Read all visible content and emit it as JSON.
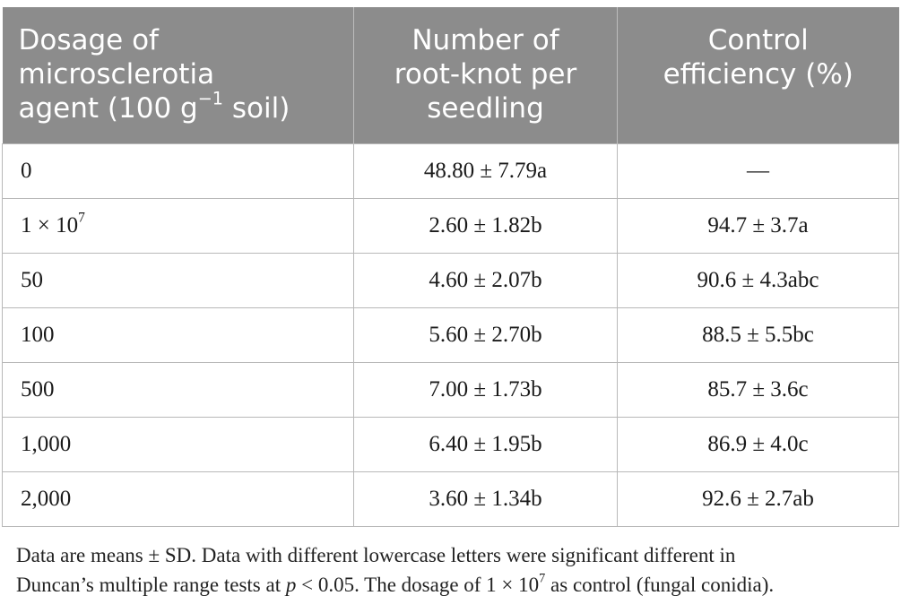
{
  "table": {
    "headers": {
      "col1": [
        "Dosage of",
        "microsclerotia",
        "agent (100 g",
        "−1",
        " soil)"
      ],
      "col2": [
        "Number of",
        "root-knot per",
        "seedling"
      ],
      "col3": [
        "Control",
        "efficiency (%)"
      ]
    },
    "rows": [
      {
        "dosage": "0",
        "dosage_sup": "",
        "knots": "48.80 ± 7.79a",
        "efficiency": "—"
      },
      {
        "dosage": "1 × 10",
        "dosage_sup": "7",
        "knots": "2.60 ± 1.82b",
        "efficiency": "94.7 ± 3.7a"
      },
      {
        "dosage": "50",
        "dosage_sup": "",
        "knots": "4.60 ± 2.07b",
        "efficiency": "90.6 ± 4.3abc"
      },
      {
        "dosage": "100",
        "dosage_sup": "",
        "knots": "5.60 ± 2.70b",
        "efficiency": "88.5 ± 5.5bc"
      },
      {
        "dosage": "500",
        "dosage_sup": "",
        "knots": "7.00 ± 1.73b",
        "efficiency": "85.7 ± 3.6c"
      },
      {
        "dosage": "1,000",
        "dosage_sup": "",
        "knots": "6.40 ± 1.95b",
        "efficiency": "86.9 ± 4.0c"
      },
      {
        "dosage": "2,000",
        "dosage_sup": "",
        "knots": "3.60 ± 1.34b",
        "efficiency": "92.6 ± 2.7ab"
      }
    ]
  },
  "note": {
    "line1": "Data are means ± SD. Data with different lowercase letters were significant different in",
    "line2_a": "Duncan’s multiple range tests at ",
    "line2_p": "p",
    "line2_b": " < 0.05. The dosage of 1 × 10",
    "line2_sup": "7",
    "line2_c": " as control (fungal conidia)."
  },
  "colors": {
    "header_bg": "#8c8c8c",
    "header_text": "#ffffff",
    "grid": "#b8b8b8"
  }
}
